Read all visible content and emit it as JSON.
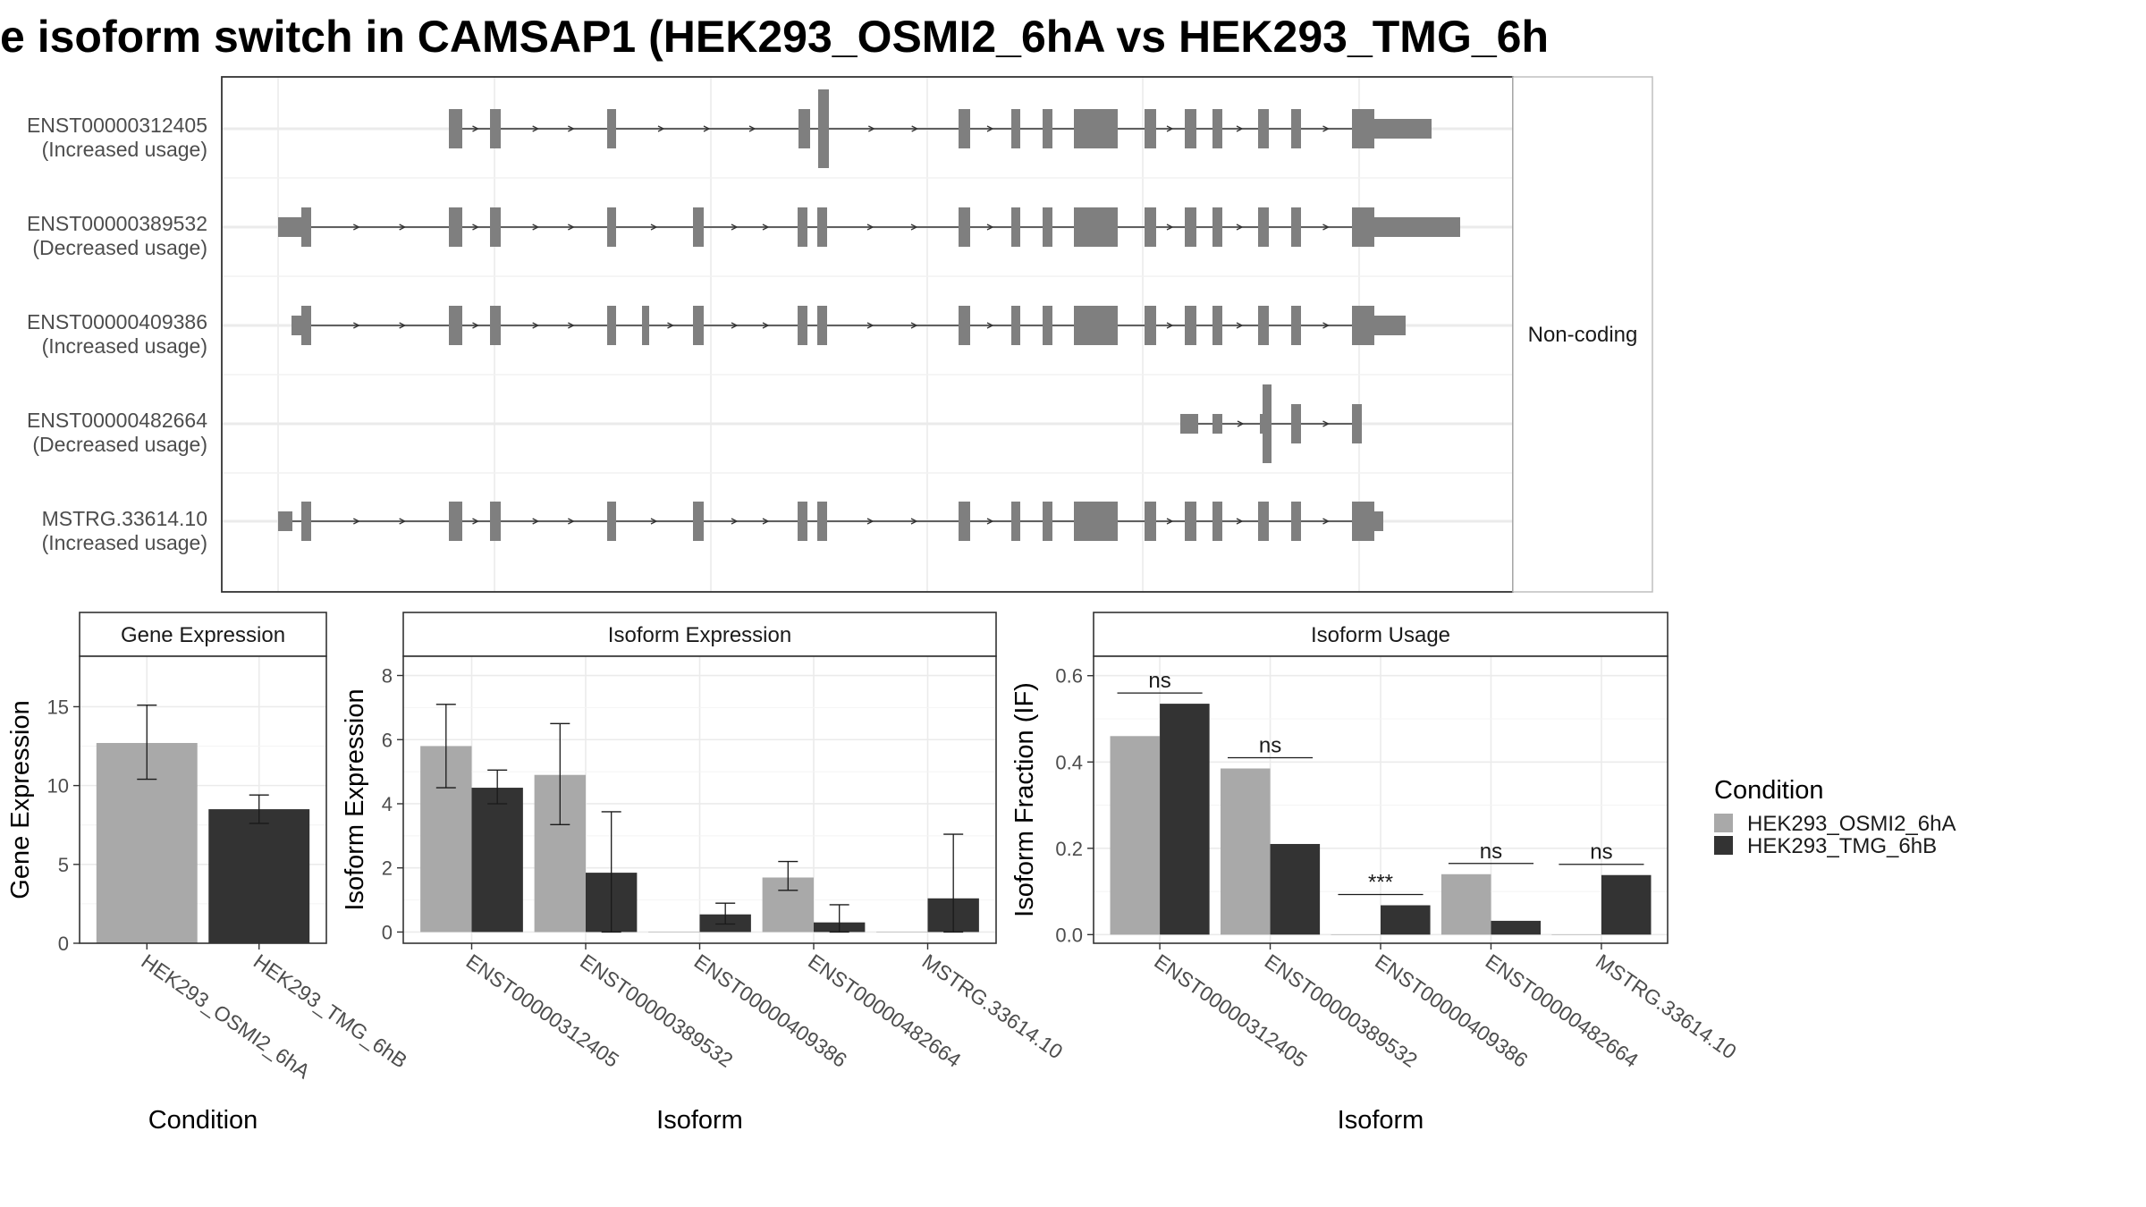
{
  "chart_data": {
    "title": "e isoform switch in CAMSAP1 (HEK293_OSMI2_6hA vs HEK293_TMG_6h",
    "structure_panel": {
      "type": "transcript-structure",
      "strip_label": "Non-coding",
      "isoforms": [
        {
          "id": "ENST00000312405",
          "usage": "(Increased usage)"
        },
        {
          "id": "ENST00000389532",
          "usage": "(Decreased usage)"
        },
        {
          "id": "ENST00000409386",
          "usage": "(Increased usage)"
        },
        {
          "id": "ENST00000482664",
          "usage": "(Decreased usage)"
        },
        {
          "id": "MSTRG.33614.10",
          "usage": "(Increased usage)"
        }
      ]
    },
    "gene_expression": {
      "type": "bar",
      "strip_title": "Gene Expression",
      "xlabel": "Condition",
      "ylabel": "Gene Expression",
      "ylim": [
        0,
        18.2
      ],
      "yticks": [
        0,
        5,
        10,
        15
      ],
      "categories": [
        "HEK293_OSMI2_6hA",
        "HEK293_TMG_6hB"
      ],
      "values": [
        12.7,
        8.5
      ],
      "error_low": [
        10.4,
        7.6
      ],
      "error_high": [
        15.1,
        9.4
      ]
    },
    "isoform_expression": {
      "type": "bar",
      "strip_title": "Isoform Expression",
      "xlabel": "Isoform",
      "ylabel": "Isoform Expression",
      "ylim": [
        -0.35,
        8.6
      ],
      "yticks": [
        0,
        2,
        4,
        6,
        8
      ],
      "categories": [
        "ENST00000312405",
        "ENST00000389532",
        "ENST00000409386",
        "ENST00000482664",
        "MSTRG.33614.10"
      ],
      "series": [
        {
          "name": "HEK293_OSMI2_6hA",
          "values": [
            5.8,
            4.9,
            0.0,
            1.7,
            0.0
          ],
          "error_low": [
            4.5,
            3.35,
            0.0,
            1.3,
            0.0
          ],
          "error_high": [
            7.1,
            6.5,
            0.0,
            2.2,
            0.0
          ]
        },
        {
          "name": "HEK293_TMG_6hB",
          "values": [
            4.5,
            1.85,
            0.55,
            0.3,
            1.05
          ],
          "error_low": [
            4.0,
            0.0,
            0.25,
            0.0,
            0.0
          ],
          "error_high": [
            5.05,
            3.75,
            0.9,
            0.85,
            3.05
          ]
        }
      ]
    },
    "isoform_usage": {
      "type": "bar",
      "strip_title": "Isoform Usage",
      "xlabel": "Isoform",
      "ylabel": "Isoform Fraction (IF)",
      "ylim": [
        -0.02,
        0.645
      ],
      "yticks": [
        "0.0",
        "0.2",
        "0.4",
        "0.6"
      ],
      "categories": [
        "ENST00000312405",
        "ENST00000389532",
        "ENST00000409386",
        "ENST00000482664",
        "MSTRG.33614.10"
      ],
      "series": [
        {
          "name": "HEK293_OSMI2_6hA",
          "values": [
            0.46,
            0.385,
            0.0,
            0.14,
            0.0
          ]
        },
        {
          "name": "HEK293_TMG_6hB",
          "values": [
            0.535,
            0.21,
            0.068,
            0.032,
            0.138
          ]
        }
      ],
      "significance": [
        "ns",
        "ns",
        "***",
        "ns",
        "ns"
      ]
    },
    "legend": {
      "title": "Condition",
      "placement": "right",
      "items": [
        {
          "name": "HEK293_OSMI2_6hA",
          "color": "#a9a9a9"
        },
        {
          "name": "HEK293_TMG_6hB",
          "color": "#333333"
        }
      ]
    },
    "colors": {
      "condition_a": "#a9a9a9",
      "condition_b": "#333333",
      "exon": "#7f7f7f"
    }
  }
}
